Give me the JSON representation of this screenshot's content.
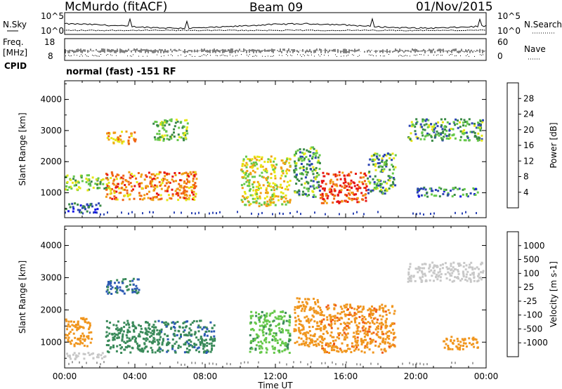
{
  "header": {
    "station": "McMurdo (fitACF)",
    "beam": "Beam 09",
    "date": "01/Nov/2015"
  },
  "noise_panel": {
    "left_label": "N.Sky",
    "right_label": "N.Search",
    "tick_top": "10^5",
    "tick_bottom": "10^0"
  },
  "freq_panel": {
    "left_label_1": "Freq.",
    "left_label_2": "[MHz]",
    "tick_top": "18",
    "tick_bottom": "8",
    "right_label": "Nave",
    "right_tick_top": "60",
    "right_tick_bottom": "0"
  },
  "cpid": {
    "label": "CPID",
    "mode": "normal (fast) -151 RF"
  },
  "colors": {
    "power": [
      "#1414e6",
      "#2c44b4",
      "#3a8a46",
      "#66c84a",
      "#e6e614",
      "#f0a014",
      "#f06414",
      "#e61414"
    ],
    "velocity": [
      "#e61414",
      "#f05a14",
      "#f0961e",
      "#e6c878",
      "#c8c8c8",
      "#66c84a",
      "#3a8a5a",
      "#2c5ab4",
      "#1e3cc8"
    ],
    "ground_scatter": "#a0a0a0"
  },
  "chart_data": [
    {
      "type": "heatmap",
      "name": "power",
      "ylabel": "Slant Range [km]",
      "yticks": [
        "1000",
        "2000",
        "3000",
        "4000"
      ],
      "ylim": [
        200,
        4600
      ],
      "colorbar_label": "Power [dB]",
      "colorbar_ticks": [
        "4",
        "8",
        "12",
        "16",
        "20",
        "24",
        "28"
      ],
      "colorbar_range": [
        0,
        32
      ],
      "x_hours": [
        0,
        24
      ],
      "echo_regions": [
        {
          "t": [
            0.0,
            2.5
          ],
          "r": [
            1100,
            1600
          ],
          "power": 14
        },
        {
          "t": [
            0.0,
            2.0
          ],
          "r": [
            400,
            700
          ],
          "power": 6
        },
        {
          "t": [
            2.3,
            4.0
          ],
          "r": [
            2600,
            3000
          ],
          "power": 22
        },
        {
          "t": [
            2.3,
            7.5
          ],
          "r": [
            800,
            1700
          ],
          "power": 24
        },
        {
          "t": [
            5.0,
            7.0
          ],
          "r": [
            2700,
            3400
          ],
          "power": 14
        },
        {
          "t": [
            10.0,
            12.8
          ],
          "r": [
            600,
            2200
          ],
          "power": 18
        },
        {
          "t": [
            13.0,
            14.5
          ],
          "r": [
            900,
            2500
          ],
          "power": 12
        },
        {
          "t": [
            14.5,
            17.2
          ],
          "r": [
            700,
            1700
          ],
          "power": 28
        },
        {
          "t": [
            17.2,
            18.8
          ],
          "r": [
            1000,
            2300
          ],
          "power": 12
        },
        {
          "t": [
            19.5,
            23.8
          ],
          "r": [
            2700,
            3400
          ],
          "power": 12
        },
        {
          "t": [
            20.0,
            23.5
          ],
          "r": [
            900,
            1200
          ],
          "power": 8
        }
      ]
    },
    {
      "type": "heatmap",
      "name": "velocity",
      "ylabel": "Slant Range [km]",
      "yticks": [
        "1000",
        "2000",
        "3000",
        "4000"
      ],
      "ylim": [
        200,
        4600
      ],
      "xlabel": "Time UT",
      "xticks": [
        "00:00",
        "04:00",
        "08:00",
        "12:00",
        "16:00",
        "20:00",
        "00:00"
      ],
      "x_hours": [
        0,
        24
      ],
      "colorbar_label": "Velocity [m s-1]",
      "colorbar_ticks": [
        "-1000",
        "-500",
        "-100",
        "-25",
        "25",
        "100",
        "500",
        "1000"
      ],
      "echo_regions": [
        {
          "t": [
            0.0,
            1.5
          ],
          "r": [
            900,
            1800
          ],
          "velocity": -200
        },
        {
          "t": [
            0.0,
            2.5
          ],
          "r": [
            500,
            700
          ],
          "velocity": 0
        },
        {
          "t": [
            2.3,
            4.2
          ],
          "r": [
            2500,
            3000
          ],
          "velocity": 600
        },
        {
          "t": [
            2.3,
            5.2
          ],
          "r": [
            700,
            1700
          ],
          "velocity": 300
        },
        {
          "t": [
            5.2,
            8.5
          ],
          "r": [
            700,
            1700
          ],
          "velocity": 400
        },
        {
          "t": [
            10.5,
            12.8
          ],
          "r": [
            700,
            2000
          ],
          "velocity": 80
        },
        {
          "t": [
            13.0,
            14.5
          ],
          "r": [
            900,
            2400
          ],
          "velocity": -300
        },
        {
          "t": [
            14.5,
            18.8
          ],
          "r": [
            700,
            2200
          ],
          "velocity": -400
        },
        {
          "t": [
            19.5,
            23.8
          ],
          "r": [
            2900,
            3500
          ],
          "velocity": 0
        },
        {
          "t": [
            21.5,
            23.5
          ],
          "r": [
            800,
            1200
          ],
          "velocity": -200
        }
      ]
    }
  ]
}
